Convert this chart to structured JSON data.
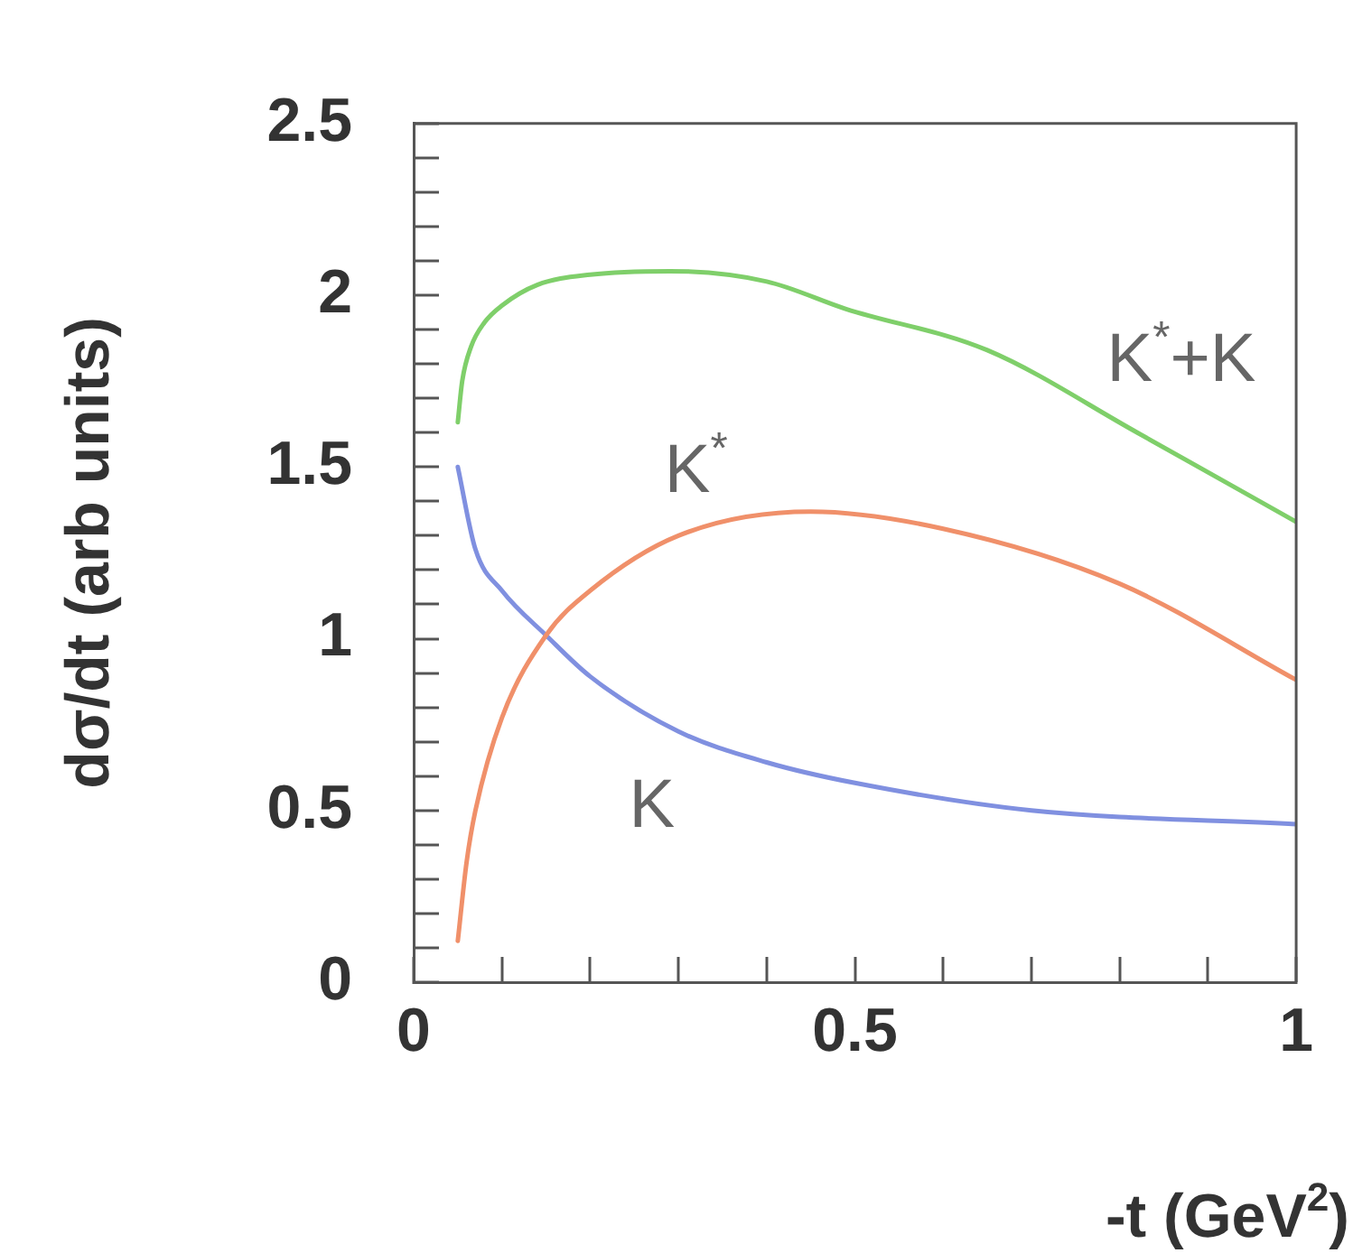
{
  "chart_data": {
    "type": "line",
    "xlabel": "-t (GeV$^{2}$)",
    "ylabel": "dσ/dt (arb units)",
    "xlim": [
      0,
      1
    ],
    "ylim": [
      0,
      2.5
    ],
    "xticks": [
      0,
      {
        "value": 0.1,
        "label": null
      },
      {
        "value": 0.2,
        "label": null
      },
      {
        "value": 0.3,
        "label": null
      },
      {
        "value": 0.4,
        "label": null
      },
      0.5,
      {
        "value": 0.6,
        "label": null
      },
      {
        "value": 0.7,
        "label": null
      },
      {
        "value": 0.8,
        "label": null
      },
      {
        "value": 0.9,
        "label": null
      },
      1
    ],
    "yticks": [
      0,
      {
        "value": 0.1,
        "label": null
      },
      {
        "value": 0.2,
        "label": null
      },
      {
        "value": 0.3,
        "label": null
      },
      {
        "value": 0.4,
        "label": null
      },
      0.5,
      {
        "value": 0.6,
        "label": null
      },
      {
        "value": 0.7,
        "label": null
      },
      {
        "value": 0.8,
        "label": null
      },
      {
        "value": 0.9,
        "label": null
      },
      1,
      {
        "value": 1.1,
        "label": null
      },
      {
        "value": 1.2,
        "label": null
      },
      {
        "value": 1.3,
        "label": null
      },
      {
        "value": 1.4,
        "label": null
      },
      1.5,
      {
        "value": 1.6,
        "label": null
      },
      {
        "value": 1.7,
        "label": null
      },
      {
        "value": 1.8,
        "label": null
      },
      {
        "value": 1.9,
        "label": null
      },
      2,
      {
        "value": 2.1,
        "label": null
      },
      {
        "value": 2.2,
        "label": null
      },
      {
        "value": 2.3,
        "label": null
      },
      {
        "value": 2.4,
        "label": null
      },
      2.5
    ],
    "grid": false,
    "legend": false,
    "marker": "none",
    "line_style": "solid",
    "series": [
      {
        "color": "#7fcf6a",
        "x": [
          0.05,
          0.055,
          0.065,
          0.08,
          0.1,
          0.14,
          0.2,
          0.29,
          0.4,
          0.49,
          0.65,
          0.82,
          1
        ],
        "values": [
          1.63,
          1.75,
          1.85,
          1.92,
          1.97,
          2.03,
          2.06,
          2.07,
          2.04,
          1.96,
          1.84,
          1.6,
          1.34
        ]
      },
      {
        "color": "#f0906a",
        "x": [
          0.05,
          0.06,
          0.07,
          0.1,
          0.15,
          0.2,
          0.3,
          0.45,
          0.6,
          0.8,
          1
        ],
        "values": [
          0.12,
          0.35,
          0.5,
          0.77,
          1.01,
          1.14,
          1.3,
          1.37,
          1.32,
          1.16,
          0.88
        ]
      },
      {
        "color": "#8090e0",
        "x": [
          0.05,
          0.07,
          0.1,
          0.15,
          0.2,
          0.3,
          0.4,
          0.5,
          0.7,
          1
        ],
        "values": [
          1.5,
          1.26,
          1.14,
          1.01,
          0.89,
          0.73,
          0.64,
          0.58,
          0.5,
          0.46
        ]
      }
    ],
    "annotations": [
      "K$^{*}$+K",
      "K$^{*}$",
      "K"
    ]
  }
}
